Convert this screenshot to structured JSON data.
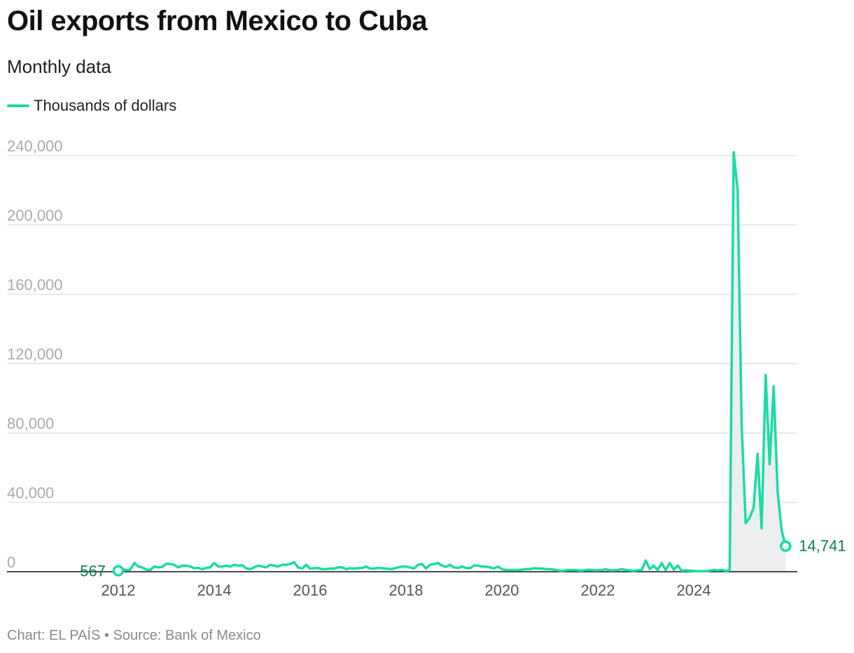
{
  "header": {
    "title": "Oil exports from Mexico to Cuba",
    "subtitle": "Monthly data"
  },
  "legend": {
    "label": "Thousands of dollars",
    "color": "#1bdba4"
  },
  "footer": {
    "credit": "Chart: EL PAÍS • Source: Bank of Mexico"
  },
  "colors": {
    "line": "#1bdba4",
    "label": "#0e7a5a",
    "area": "#eceeef",
    "grid": "#dddddd",
    "tick": "#aaaaaa"
  },
  "chart_data": {
    "type": "line",
    "title": "Oil exports from Mexico to Cuba",
    "subtitle": "Monthly data",
    "ylabel": "",
    "xlabel": "",
    "ylim": [
      0,
      240000
    ],
    "yticks": [
      "0",
      "40,000",
      "80,000",
      "120,000",
      "160,000",
      "200,000",
      "240,000"
    ],
    "xticks": [
      "2012",
      "2014",
      "2016",
      "2018",
      "2020",
      "2022",
      "2024"
    ],
    "grid": true,
    "legend_position": "top-left",
    "shaded_period_start": "2024-09",
    "series": [
      {
        "name": "Thousands of dollars",
        "start": "2012-01",
        "frequency": "monthly",
        "values": [
          567,
          1500,
          1000,
          1200,
          5000,
          3000,
          2500,
          1200,
          1000,
          3000,
          2500,
          2800,
          4500,
          4500,
          4000,
          2500,
          3500,
          3500,
          3000,
          2000,
          2200,
          1500,
          2200,
          2500,
          5000,
          3000,
          3000,
          3500,
          3000,
          4000,
          3500,
          3800,
          2000,
          1500,
          2500,
          3500,
          3000,
          2500,
          4000,
          3500,
          3000,
          4000,
          4000,
          4500,
          5500,
          2500,
          1800,
          4000,
          1800,
          2000,
          2200,
          1500,
          1500,
          1800,
          1800,
          2500,
          2500,
          1500,
          2000,
          1800,
          2000,
          2200,
          3000,
          1800,
          1800,
          2200,
          2000,
          1800,
          1500,
          1800,
          2500,
          3000,
          3000,
          2500,
          1800,
          4000,
          4500,
          1800,
          4000,
          4500,
          5000,
          3500,
          2800,
          4000,
          2500,
          2200,
          3000,
          2200,
          2000,
          3500,
          3500,
          3000,
          3000,
          2500,
          1800,
          3000,
          1500,
          1000,
          1000,
          1000,
          1000,
          1200,
          1500,
          1500,
          2000,
          1800,
          1800,
          1500,
          1500,
          1200,
          800,
          500,
          800,
          1000,
          1000,
          800,
          600,
          1000,
          1200,
          800,
          800,
          1000,
          1500,
          800,
          800,
          1000,
          1500,
          1000,
          800,
          500,
          800,
          1000,
          6500,
          1500,
          3500,
          1000,
          5000,
          1000,
          5000,
          1200,
          3500,
          600,
          800,
          600,
          500,
          300,
          300,
          300,
          600,
          1000,
          800,
          1000,
          500,
          800,
          242000,
          220000,
          85000,
          28000,
          31000,
          37000,
          68000,
          25000,
          113500,
          62000,
          107000,
          46000,
          24000,
          14741
        ]
      }
    ],
    "annotations": [
      {
        "label": "567",
        "position": "first-point"
      },
      {
        "label": "14,741",
        "position": "last-point"
      }
    ]
  }
}
